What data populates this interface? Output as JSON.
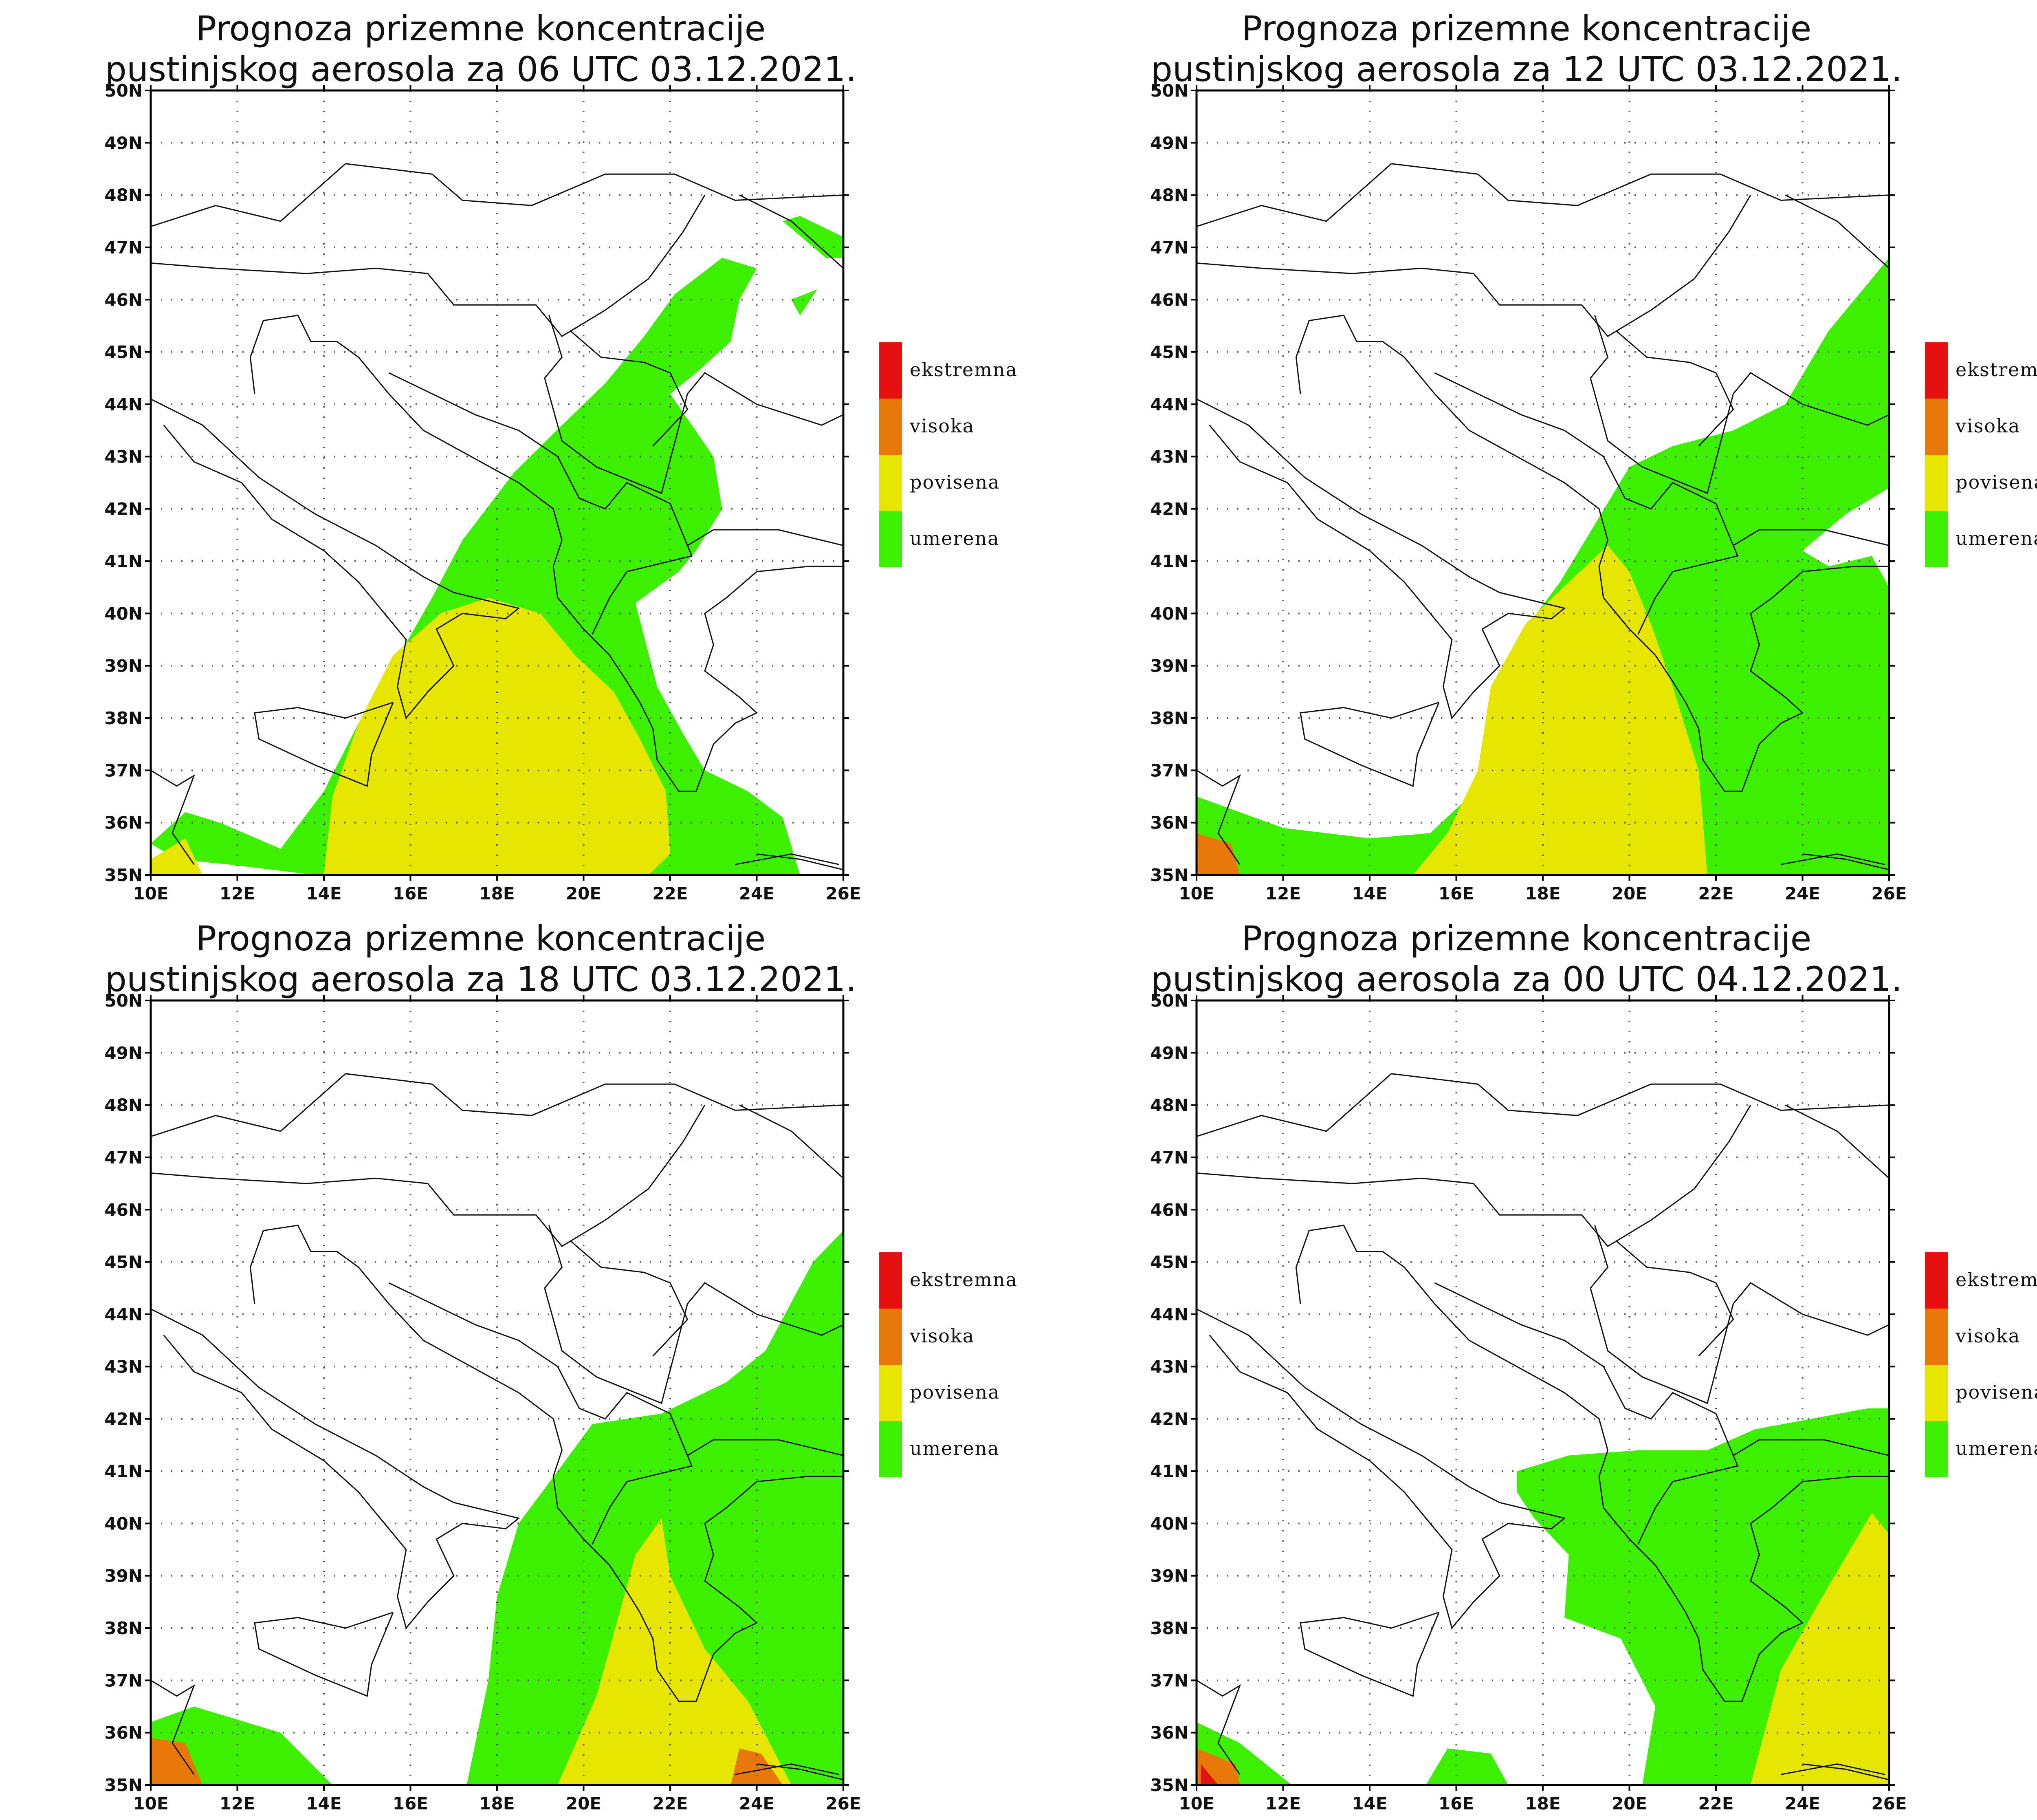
{
  "panels": [
    {
      "title_line1": "Prognoza prizemne koncentracije",
      "title_line2": "pustinjskog aerosola za 06 UTC 03.12.2021."
    },
    {
      "title_line1": "Prognoza prizemne koncentracije",
      "title_line2": "pustinjskog aerosola za 12 UTC 03.12.2021."
    },
    {
      "title_line1": "Prognoza prizemne koncentracije",
      "title_line2": "pustinjskog aerosola za 18 UTC 03.12.2021."
    },
    {
      "title_line1": "Prognoza prizemne koncentracije",
      "title_line2": "pustinjskog aerosola za 00 UTC 04.12.2021."
    }
  ],
  "lat_labels": [
    "50N",
    "49N",
    "48N",
    "47N",
    "46N",
    "45N",
    "44N",
    "43N",
    "42N",
    "41N",
    "40N",
    "39N",
    "38N",
    "37N",
    "36N",
    "35N"
  ],
  "lon_labels": [
    "10E",
    "12E",
    "14E",
    "16E",
    "18E",
    "20E",
    "22E",
    "24E",
    "26E"
  ],
  "legend": [
    {
      "label": "ekstremna",
      "color": "#e61010"
    },
    {
      "label": "visoka",
      "color": "#e8780a"
    },
    {
      "label": "povisena",
      "color": "#e6e600"
    },
    {
      "label": "umerena",
      "color": "#3cf000"
    }
  ]
}
